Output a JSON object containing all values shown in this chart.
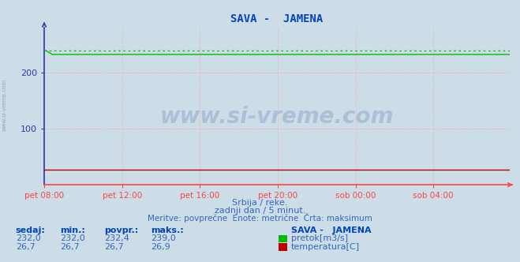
{
  "title": "SAVA -  JAMENA",
  "bg_color": "#ccdde8",
  "plot_bg_color": "#ccdde8",
  "grid_color": "#ff9999",
  "xlim": [
    0,
    287
  ],
  "ylim": [
    0,
    280
  ],
  "yticks": [
    100,
    200
  ],
  "xtick_labels": [
    "pet 08:00",
    "pet 12:00",
    "pet 16:00",
    "pet 20:00",
    "sob 00:00",
    "sob 04:00"
  ],
  "xtick_positions": [
    0,
    48,
    96,
    144,
    192,
    240
  ],
  "flow_color": "#00bb00",
  "flow_max_color": "#00bb00",
  "temp_color": "#bb0000",
  "flow_value": 232.0,
  "flow_max": 239.0,
  "flow_initial_spike": 239.0,
  "flow_spike_end_idx": 5,
  "temp_value": 26.7,
  "n_points": 288,
  "subtitle1": "Srbija / reke.",
  "subtitle2": "zadnji dan / 5 minut.",
  "subtitle3": "Meritve: povprečne  Enote: metrične  Črta: maksimum",
  "legend_title": "SAVA -   JAMENA",
  "legend_flow_label": "pretok[m3/s]",
  "legend_temp_label": "temperatura[C]",
  "stat_headers": [
    "sedaj:",
    "min.:",
    "povpr.:",
    "maks.:"
  ],
  "flow_stats": [
    232.0,
    232.0,
    232.4,
    239.0
  ],
  "temp_stats": [
    26.7,
    26.7,
    26.7,
    26.9
  ],
  "watermark": "www.si-vreme.com",
  "axis_color_x": "#ff4444",
  "axis_color_y": "#3333aa",
  "title_color": "#0044bb",
  "label_color": "#3366bb",
  "stat_header_color": "#0044bb",
  "stat_value_color": "#3366bb",
  "side_watermark": "www.si-vreme.com"
}
